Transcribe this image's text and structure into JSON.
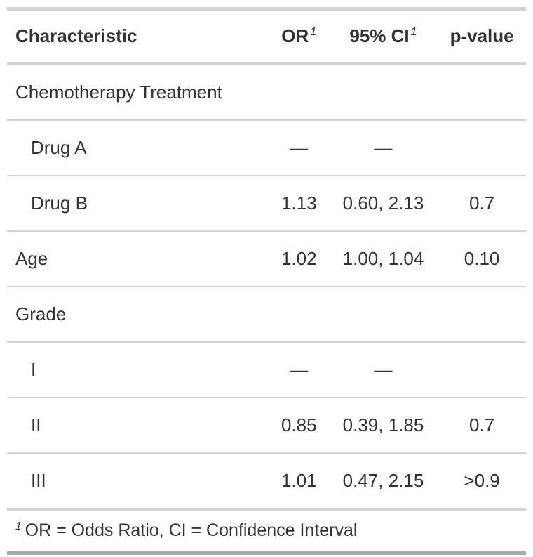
{
  "colors": {
    "text": "#333333",
    "border_light": "#D3D3D3",
    "border_dark": "#A9A9A9",
    "background": "#FFFFFF"
  },
  "table": {
    "columns": [
      {
        "label": "Characteristic",
        "marker": ""
      },
      {
        "label": "OR",
        "marker": "1"
      },
      {
        "label": "95% CI",
        "marker": "1"
      },
      {
        "label": "p-value",
        "marker": ""
      }
    ],
    "rows": [
      {
        "label": "Chemotherapy Treatment",
        "or": "",
        "ci": "",
        "p": ""
      },
      {
        "label": "Drug A",
        "or": "—",
        "ci": "—",
        "p": ""
      },
      {
        "label": "Drug B",
        "or": "1.13",
        "ci": "0.60, 2.13",
        "p": "0.7"
      },
      {
        "label": "Age",
        "or": "1.02",
        "ci": "1.00, 1.04",
        "p": "0.10"
      },
      {
        "label": "Grade",
        "or": "",
        "ci": "",
        "p": ""
      },
      {
        "label": "I",
        "or": "—",
        "ci": "—",
        "p": ""
      },
      {
        "label": "II",
        "or": "0.85",
        "ci": "0.39, 1.85",
        "p": "0.7"
      },
      {
        "label": "III",
        "or": "1.01",
        "ci": "0.47, 2.15",
        "p": ">0.9"
      }
    ],
    "footnote": {
      "marker": "1",
      "text": "OR = Odds Ratio, CI = Confidence Interval"
    }
  }
}
